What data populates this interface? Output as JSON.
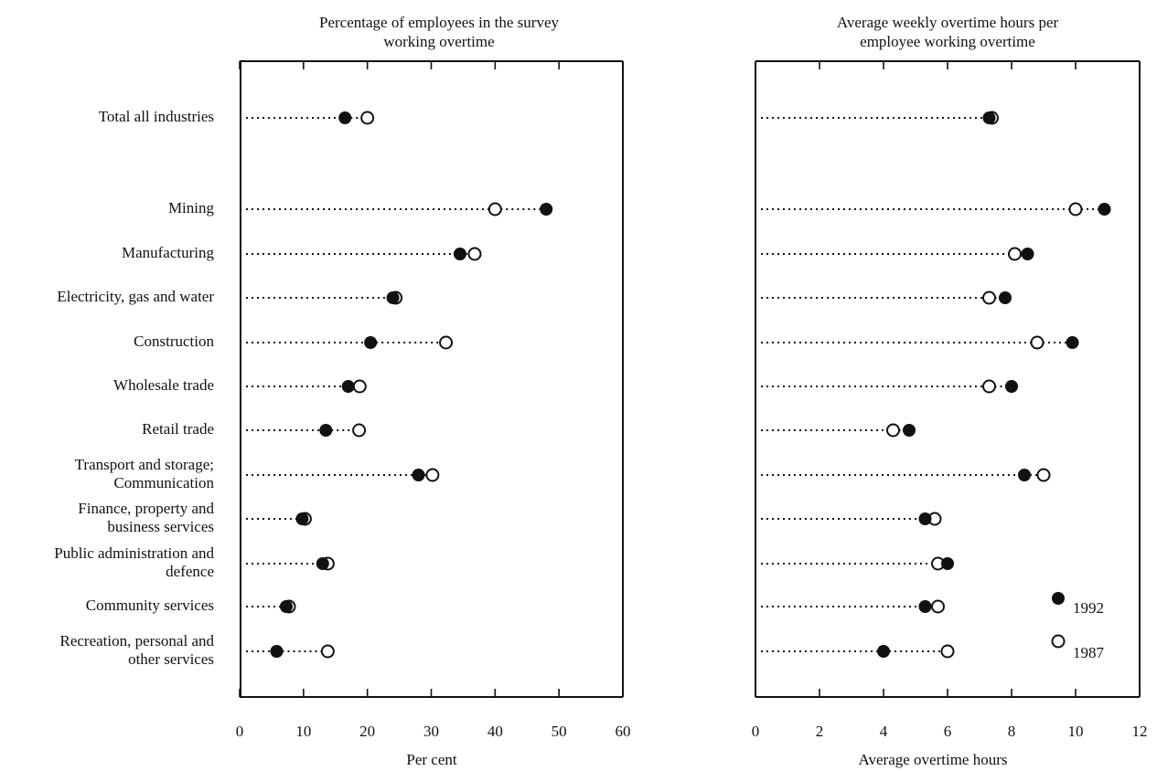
{
  "chart_data": [
    {
      "type": "scatter",
      "title": "Percentage of employees in the survey working overtime",
      "xlabel": "Per cent",
      "xlim": [
        0,
        60
      ],
      "xticks": [
        "0",
        "10",
        "20",
        "30",
        "40",
        "50",
        "60"
      ],
      "categories": [
        "Total all industries",
        "Mining",
        "Manufacturing",
        "Electricity, gas and water",
        "Construction",
        "Wholesale trade",
        "Retail trade",
        "Transport and storage; Communication",
        "Finance, property and business services",
        "Public administration and defence",
        "Community services",
        "Recreation, personal and other services"
      ],
      "series": [
        {
          "name": "1992",
          "marker": "filled",
          "values": [
            16.5,
            48,
            34.5,
            24,
            20.5,
            17,
            13.5,
            28,
            9.8,
            13,
            7.3,
            5.8
          ]
        },
        {
          "name": "1987",
          "marker": "open",
          "values": [
            20,
            40,
            36.8,
            24,
            32.3,
            18.8,
            18.7,
            30.2,
            9.8,
            13.8,
            7.3,
            13.8
          ]
        }
      ]
    },
    {
      "type": "scatter",
      "title": "Average weekly overtime hours per employee working overtime",
      "xlabel": "Average overtime hours",
      "xlim": [
        0,
        12
      ],
      "xticks": [
        "0",
        "2",
        "4",
        "6",
        "8",
        "10",
        "12"
      ],
      "legend": {
        "position": "bottom-right",
        "entries": [
          "1992",
          "1987"
        ]
      },
      "series": [
        {
          "name": "1992",
          "marker": "filled",
          "values": [
            7.3,
            10.9,
            8.5,
            7.8,
            9.9,
            8.0,
            4.8,
            8.4,
            5.3,
            6.0,
            5.3,
            4.0
          ]
        },
        {
          "name": "1987",
          "marker": "open",
          "values": [
            7.3,
            10.0,
            8.1,
            7.3,
            8.8,
            7.3,
            4.3,
            9.0,
            5.6,
            5.7,
            5.7,
            6.0
          ]
        }
      ]
    }
  ],
  "labels": {
    "left_title": "Percentage of employees in the survey working overtime",
    "left_title_lines": [
      "Percentage of employees in the survey",
      "working overtime"
    ],
    "right_title_lines": [
      "Average weekly overtime hours per",
      "employee working overtime"
    ],
    "left_xlabel": "Per cent",
    "right_xlabel": "Average overtime hours",
    "category_lines": [
      [
        "Total all industries"
      ],
      [
        "Mining"
      ],
      [
        "Manufacturing"
      ],
      [
        "Electricity, gas and water"
      ],
      [
        "Construction"
      ],
      [
        "Wholesale trade"
      ],
      [
        "Retail trade"
      ],
      [
        "Transport and storage;",
        "Communication"
      ],
      [
        "Finance, property and",
        "business services"
      ],
      [
        "Public administration and",
        "defence"
      ],
      [
        "Community services"
      ],
      [
        "Recreation, personal and",
        "other services"
      ]
    ],
    "legend_1992": "1992",
    "legend_1987": "1987"
  },
  "colors": {
    "ink": "#111111",
    "background": "#ffffff"
  }
}
